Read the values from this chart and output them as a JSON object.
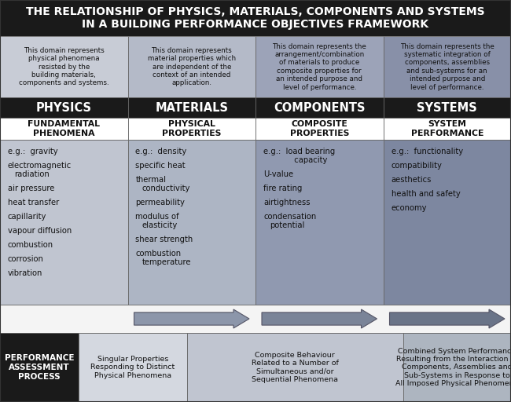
{
  "title_line1": "THE RELATIONSHIP OF PHYSICS, MATERIALS, COMPONENTS AND SYSTEMS",
  "title_line2": "IN A BUILDING PERFORMANCE OBJECTIVES FRAMEWORK",
  "title_bg": "#1a1a1a",
  "title_fg": "#ffffff",
  "col_headers": [
    "PHYSICS",
    "MATERIALS",
    "COMPONENTS",
    "SYSTEMS"
  ],
  "col_header_bg": "#1a1a1a",
  "col_header_fg": "#ffffff",
  "sub_headers": [
    "FUNDAMENTAL\nPHENOMENA",
    "PHYSICAL\nPROPERTIES",
    "COMPOSITE\nPROPERTIES",
    "SYSTEM\nPERFORMANCE"
  ],
  "desc_texts": [
    "This domain represents\nphysical phenomena\nresisted by the\nbuilding materials,\ncomponents and systems.",
    "This domain represents\nmaterial properties which\nare independent of the\ncontext of an intended\napplication.",
    "This domain represents the\narrangement/combination\nof materials to produce\ncomposite properties for\nan intended purpose and\nlevel of performance.",
    "This domain represents the\nsystematic integration of\ncomponents, assemblies\nand sub-systems for an\nintended purpose and\nlevel of performance."
  ],
  "col_desc_bg": [
    "#c8ccd6",
    "#b4bac8",
    "#9ca3b8",
    "#8890a8"
  ],
  "col_content_bg": [
    "#c0c5d0",
    "#adb5c4",
    "#9099b0",
    "#7d87a0"
  ],
  "items_col0": [
    "e.g.:  gravity",
    "electromagnetic\nradiation",
    "air pressure",
    "heat transfer",
    "capillarity",
    "vapour diffusion",
    "combustion",
    "corrosion",
    "vibration"
  ],
  "items_col1": [
    "e.g.:  density",
    "specific heat",
    "thermal\nconductivity",
    "permeability",
    "modulus of\nelasticity",
    "shear strength",
    "combustion\ntemperature"
  ],
  "items_col2": [
    "e.g.:  load bearing\n          capacity",
    "U-value",
    "fire rating",
    "airtightness",
    "condensation\npotential"
  ],
  "items_col3": [
    "e.g.:  functionality",
    "compatibility",
    "aesthetics",
    "health and safety",
    "economy"
  ],
  "arrow_bg": "#f0f0f0",
  "arrow_fill": "#8090a8",
  "bottom_label": "PERFORMANCE\nASSESSMENT\nPROCESS",
  "bottom_label_bg": "#1a1a1a",
  "bottom_label_fg": "#ffffff",
  "bottom_bg": "#e8eaf0",
  "bottom_texts": [
    "Singular Properties\nResponding to Distinct\nPhysical Phenomena",
    "Composite Behaviour\nRelated to a Number of\nSimultaneous and/or\nSequential Phenomena",
    "Combined System Performance\nResulting from the Interaction of\nComponents, Assemblies and\nSub-Systems in Response to\nAll Imposed Physical Phenomena"
  ],
  "border_color": "#666666"
}
